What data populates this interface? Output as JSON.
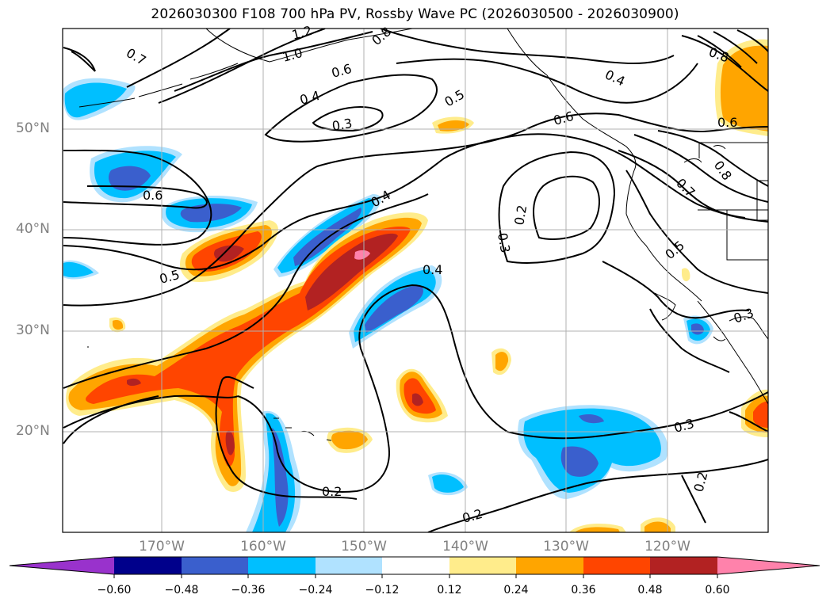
{
  "title": "2026030300 F108 700 hPa PV, Rossby Wave PC (2026030500 - 2026030900)",
  "map": {
    "lat_labels": [
      "50°N",
      "40°N",
      "30°N",
      "20°N"
    ],
    "lon_labels": [
      "170°W",
      "160°W",
      "150°W",
      "140°W",
      "130°W",
      "120°W"
    ],
    "contour_labels": [
      "0.7",
      "1.2",
      "1.0",
      "0.8",
      "0.6",
      "0.4",
      "0.3",
      "0.5",
      "0.6",
      "0.4",
      "0.8",
      "0.6",
      "0.6",
      "0.8",
      "0.7",
      "0.4",
      "0.2",
      "0.3",
      "0.5",
      "0.5",
      "0.4",
      "0.3",
      "0.3",
      "0.2",
      "0.2",
      "0.2"
    ]
  },
  "colorbar": {
    "tick_labels": [
      "−0.60",
      "−0.48",
      "−0.36",
      "−0.24",
      "−0.12",
      "0.12",
      "0.24",
      "0.36",
      "0.48",
      "0.60"
    ],
    "colors": [
      "#9932cc",
      "#00008b",
      "#3a5fcd",
      "#00bfff",
      "#b0e2ff",
      "#ffffff",
      "#ffec8b",
      "#ffa500",
      "#ff4500",
      "#b22222",
      "#ff82ab"
    ]
  }
}
